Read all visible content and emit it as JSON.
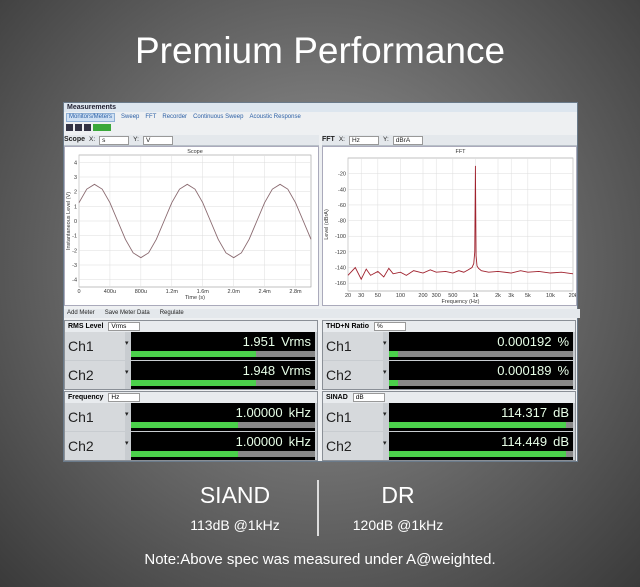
{
  "header": {
    "title": "Premium Performance"
  },
  "window": {
    "title": "Measurements",
    "tabs": [
      "Monitors/Meters",
      "Sweep",
      "FFT",
      "Recorder",
      "Continuous Sweep",
      "Acoustic Response"
    ],
    "scope_toolbar": {
      "name": "Scope",
      "x_label": "X:",
      "x_unit": "s",
      "y_label": "Y:",
      "y_unit": "V"
    },
    "fft_toolbar": {
      "name": "FFT",
      "x_label": "X:",
      "x_unit": "Hz",
      "y_label": "Y:",
      "y_unit": "dBrA"
    },
    "meter_toolbar": [
      "Add Meter",
      "Save Meter Data",
      "Regulate"
    ]
  },
  "chart_data": [
    {
      "type": "line",
      "title": "Scope",
      "x_label": "Time (s)",
      "y_label": "Instantaneous Level (V)",
      "grid": true,
      "x": [
        0,
        0.0001,
        0.0002,
        0.0003,
        0.0004,
        0.0005,
        0.0006,
        0.0007,
        0.0008,
        0.0009,
        0.001,
        0.0011,
        0.0012,
        0.0013,
        0.0014,
        0.0015,
        0.0016,
        0.0017,
        0.0018,
        0.0019,
        0.002,
        0.0021,
        0.0022,
        0.0023,
        0.0024,
        0.0025,
        0.0026,
        0.0027,
        0.0028,
        0.0029,
        0.003
      ],
      "series": [
        {
          "color": "#8a6a70",
          "values": [
            1.25,
            2.17,
            2.5,
            2.17,
            1.25,
            0,
            -1.25,
            -2.17,
            -2.5,
            -2.17,
            -1.25,
            0,
            1.25,
            2.17,
            2.5,
            2.17,
            1.25,
            0,
            -1.25,
            -2.17,
            -2.5,
            -2.17,
            -1.25,
            0,
            1.25,
            2.17,
            2.5,
            2.17,
            1.25,
            0,
            -1.25
          ]
        }
      ],
      "xlim": [
        0,
        0.003
      ],
      "ylim": [
        -4.5,
        4.5
      ],
      "xticks": [
        0,
        {
          "value": 0.0004,
          "label": "400u"
        },
        {
          "value": 0.0008,
          "label": "800u"
        },
        {
          "value": 0.0012,
          "label": "1.2m"
        },
        {
          "value": 0.0016,
          "label": "1.6m"
        },
        {
          "value": 0.002,
          "label": "2.0m"
        },
        {
          "value": 0.0024,
          "label": "2.4m"
        },
        {
          "value": 0.0028,
          "label": "2.8m"
        }
      ],
      "yticks": [
        -4,
        -3,
        -2,
        -1,
        0,
        1,
        2,
        3,
        4
      ]
    },
    {
      "type": "line",
      "title": "FFT",
      "x_label": "Frequency (Hz)",
      "y_label": "Level (dBrA)",
      "grid": true,
      "xlog": true,
      "x": [
        20,
        25,
        30,
        35,
        40,
        50,
        60,
        70,
        80,
        100,
        120,
        150,
        200,
        250,
        300,
        400,
        500,
        600,
        700,
        800,
        900,
        950,
        980,
        1000,
        1020,
        1050,
        1100,
        1200,
        1500,
        2000,
        3000,
        4000,
        5000,
        7000,
        10000,
        14000,
        20000
      ],
      "series": [
        {
          "color": "#a0222e",
          "values": [
            -150,
            -140,
            -155,
            -142,
            -150,
            -145,
            -152,
            -141,
            -148,
            -146,
            -150,
            -144,
            -147,
            -143,
            -146,
            -145,
            -147,
            -144,
            -146,
            -143,
            -140,
            -135,
            -120,
            -10,
            -125,
            -138,
            -141,
            -144,
            -146,
            -145,
            -147,
            -144,
            -146,
            -145,
            -147,
            -146,
            -148
          ]
        }
      ],
      "xlim": [
        20,
        20000
      ],
      "ylim": [
        -170,
        0
      ],
      "xticks": [
        20,
        30,
        50,
        100,
        200,
        300,
        500,
        {
          "value": 1000,
          "label": "1k"
        },
        {
          "value": 2000,
          "label": "2k"
        },
        {
          "value": 3000,
          "label": "3k"
        },
        {
          "value": 5000,
          "label": "5k"
        },
        {
          "value": 10000,
          "label": "10k"
        },
        {
          "value": 20000,
          "label": "20k"
        }
      ],
      "yticks": [
        -160,
        -140,
        -120,
        -100,
        -80,
        -60,
        -40,
        -20
      ]
    }
  ],
  "meters": [
    {
      "title": "RMS Level",
      "unit_select": "Vrms",
      "channels": [
        {
          "label": "Ch1",
          "value": "1.951",
          "unit": "Vrms"
        },
        {
          "label": "Ch2",
          "value": "1.948",
          "unit": "Vrms"
        }
      ]
    },
    {
      "title": "THD+N Ratio",
      "unit_select": "%",
      "channels": [
        {
          "label": "Ch1",
          "value": "0.000192",
          "unit": "%"
        },
        {
          "label": "Ch2",
          "value": "0.000189",
          "unit": "%"
        }
      ]
    },
    {
      "title": "Frequency",
      "unit_select": "Hz",
      "channels": [
        {
          "label": "Ch1",
          "value": "1.00000",
          "unit": "kHz"
        },
        {
          "label": "Ch2",
          "value": "1.00000",
          "unit": "kHz"
        }
      ]
    },
    {
      "title": "SINAD",
      "unit_select": "dB",
      "channels": [
        {
          "label": "Ch1",
          "value": "114.317",
          "unit": "dB"
        },
        {
          "label": "Ch2",
          "value": "114.449",
          "unit": "dB"
        }
      ]
    }
  ],
  "specs": [
    {
      "name": "SIAND",
      "value": "113dB @1kHz"
    },
    {
      "name": "DR",
      "value": "120dB @1kHz"
    }
  ],
  "note": "Note:Above spec was measured under A@weighted."
}
